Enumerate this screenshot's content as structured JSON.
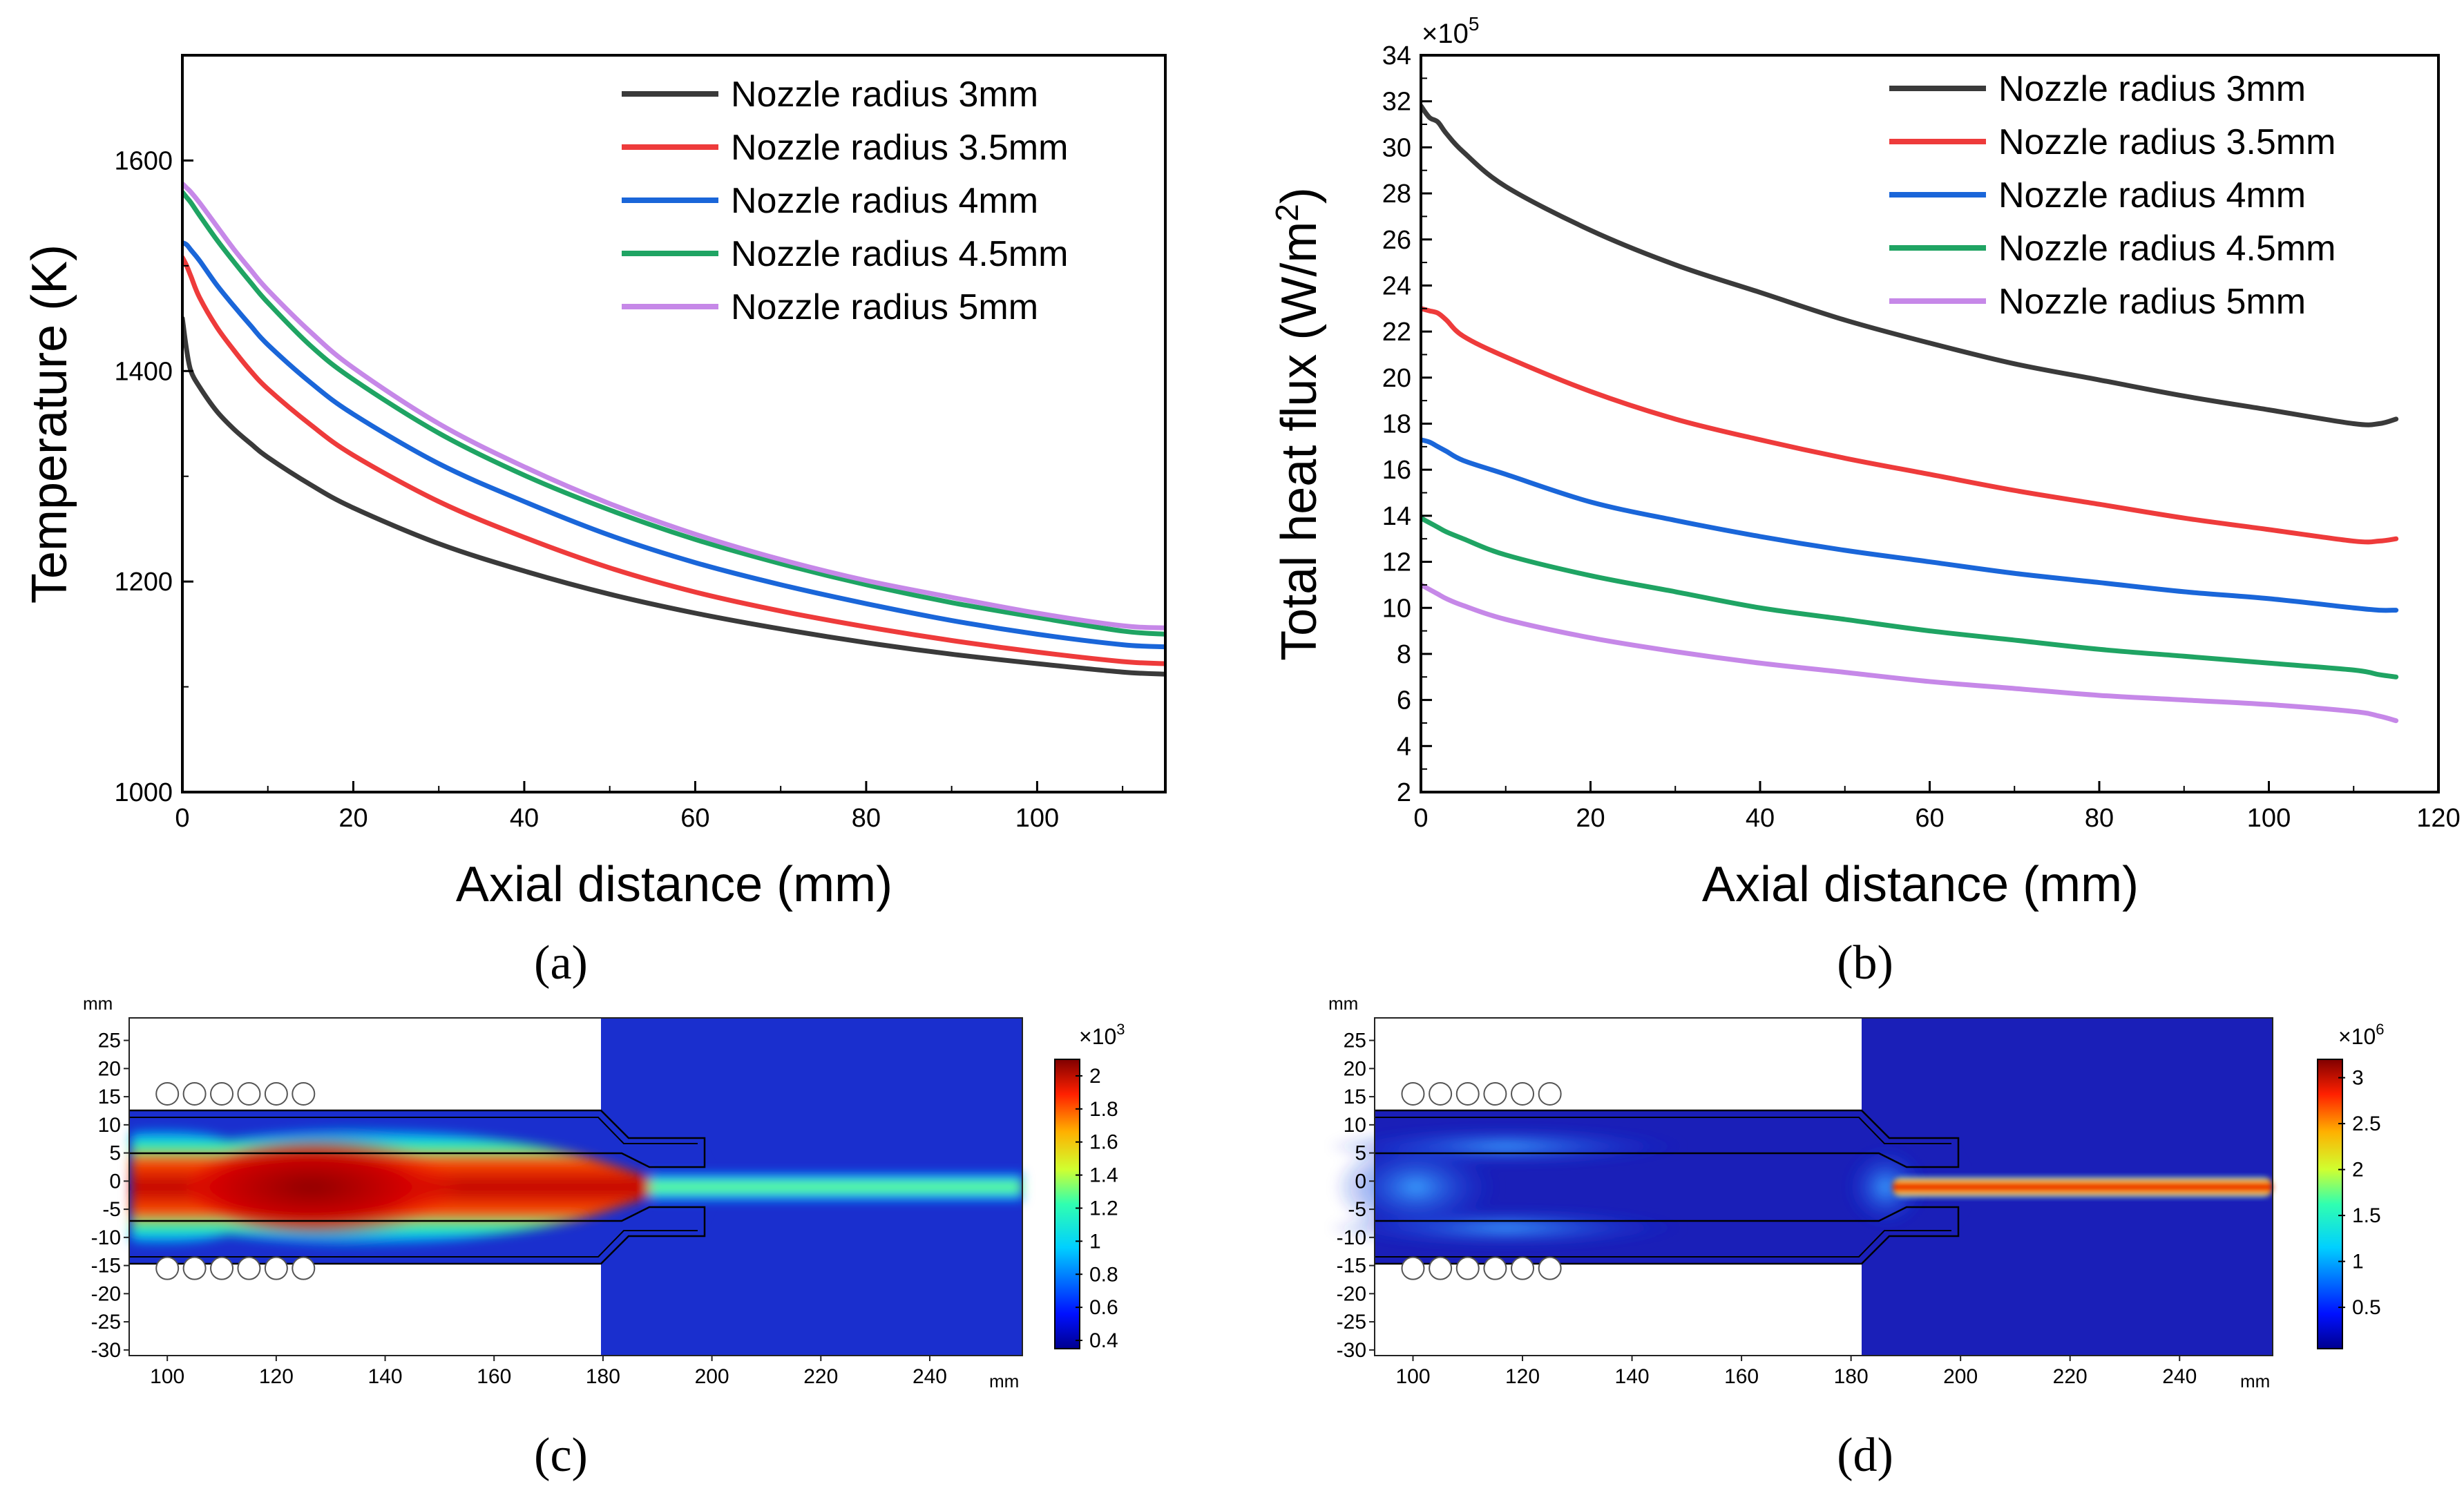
{
  "chart_data": [
    {
      "id": "a",
      "type": "line",
      "panel_label": "(a)",
      "xlabel": "Axial distance (mm)",
      "ylabel": "Temperature (K)",
      "xlim": [
        0,
        115
      ],
      "ylim": [
        1000,
        1700
      ],
      "xticks": [
        0,
        20,
        40,
        60,
        80,
        100
      ],
      "yticks": [
        1000,
        1200,
        1400,
        1600
      ],
      "legend_position": "top-right",
      "x": [
        0,
        0.5,
        1,
        2,
        4,
        6,
        8,
        10,
        15,
        20,
        30,
        40,
        50,
        60,
        70,
        80,
        90,
        100,
        110,
        115
      ],
      "series": [
        {
          "name": "Nozzle radius 3mm",
          "color": "#3a3a3a",
          "values": [
            1450,
            1420,
            1400,
            1385,
            1362,
            1345,
            1331,
            1318,
            1292,
            1270,
            1236,
            1210,
            1188,
            1170,
            1155,
            1142,
            1131,
            1122,
            1114,
            1112
          ]
        },
        {
          "name": "Nozzle radius 3.5mm",
          "color": "#ee3b3b",
          "values": [
            1508,
            1500,
            1490,
            1470,
            1442,
            1420,
            1400,
            1383,
            1349,
            1320,
            1276,
            1242,
            1213,
            1190,
            1172,
            1157,
            1144,
            1133,
            1124,
            1122
          ]
        },
        {
          "name": "Nozzle radius 4mm",
          "color": "#1a66d9",
          "values": [
            1522,
            1520,
            1515,
            1505,
            1482,
            1462,
            1443,
            1425,
            1389,
            1359,
            1312,
            1276,
            1244,
            1218,
            1197,
            1179,
            1163,
            1150,
            1140,
            1138
          ]
        },
        {
          "name": "Nozzle radius 4.5mm",
          "color": "#1fa463",
          "values": [
            1570,
            1565,
            1560,
            1548,
            1525,
            1504,
            1484,
            1465,
            1424,
            1392,
            1341,
            1301,
            1268,
            1240,
            1217,
            1197,
            1180,
            1166,
            1153,
            1150
          ]
        },
        {
          "name": "Nozzle radius 5mm",
          "color": "#c688e8",
          "values": [
            1578,
            1574,
            1570,
            1560,
            1538,
            1516,
            1496,
            1477,
            1437,
            1403,
            1350,
            1309,
            1274,
            1245,
            1221,
            1201,
            1185,
            1170,
            1158,
            1156
          ]
        }
      ]
    },
    {
      "id": "b",
      "type": "line",
      "panel_label": "(b)",
      "xlabel": "Axial distance (mm)",
      "ylabel_main": "Total heat flux (W/m",
      "ylabel_sup": "2",
      "ylabel_end": ")",
      "axis_multiplier_main": "×10",
      "axis_multiplier_exp": "5",
      "xlim": [
        0,
        120
      ],
      "ylim": [
        2,
        34
      ],
      "xticks": [
        0,
        20,
        40,
        60,
        80,
        100,
        120
      ],
      "yticks": [
        2,
        4,
        6,
        8,
        10,
        12,
        14,
        16,
        18,
        20,
        22,
        24,
        26,
        28,
        30,
        32,
        34
      ],
      "legend_position": "top-right",
      "x": [
        0,
        1,
        2,
        3,
        5,
        10,
        20,
        30,
        40,
        50,
        60,
        70,
        80,
        90,
        100,
        110,
        113,
        115
      ],
      "series": [
        {
          "name": "Nozzle radius 3mm",
          "color": "#3a3a3a",
          "values": [
            31.8,
            31.3,
            31.1,
            30.6,
            29.8,
            28.3,
            26.4,
            24.9,
            23.7,
            22.5,
            21.5,
            20.6,
            19.9,
            19.2,
            18.6,
            18.0,
            18.0,
            18.2
          ]
        },
        {
          "name": "Nozzle radius 3.5mm",
          "color": "#ee3b3b",
          "values": [
            23.0,
            22.9,
            22.8,
            22.5,
            21.8,
            20.9,
            19.4,
            18.2,
            17.3,
            16.5,
            15.8,
            15.1,
            14.5,
            13.9,
            13.4,
            12.9,
            12.9,
            13.0
          ]
        },
        {
          "name": "Nozzle radius 4mm",
          "color": "#1a66d9",
          "values": [
            17.3,
            17.2,
            17.0,
            16.8,
            16.4,
            15.8,
            14.6,
            13.8,
            13.1,
            12.5,
            12.0,
            11.5,
            11.1,
            10.7,
            10.4,
            10.0,
            9.9,
            9.9
          ]
        },
        {
          "name": "Nozzle radius 4.5mm",
          "color": "#1fa463",
          "values": [
            13.9,
            13.7,
            13.5,
            13.3,
            13.0,
            12.3,
            11.4,
            10.7,
            10.0,
            9.5,
            9.0,
            8.6,
            8.2,
            7.9,
            7.6,
            7.3,
            7.1,
            7.0
          ]
        },
        {
          "name": "Nozzle radius 5mm",
          "color": "#c688e8",
          "values": [
            11.0,
            10.8,
            10.6,
            10.4,
            10.1,
            9.5,
            8.7,
            8.1,
            7.6,
            7.2,
            6.8,
            6.5,
            6.2,
            6.0,
            5.8,
            5.5,
            5.3,
            5.1
          ]
        }
      ]
    },
    {
      "id": "c",
      "type": "heatmap",
      "panel_label": "(c)",
      "unit": "mm",
      "xlim": [
        93,
        257
      ],
      "ylim": [
        -31,
        29
      ],
      "xticks": [
        100,
        120,
        140,
        160,
        180,
        200,
        220,
        240
      ],
      "yticks": [
        25,
        20,
        15,
        10,
        5,
        0,
        -5,
        -10,
        -15,
        -20,
        -25,
        -30
      ],
      "colorbar_multiplier_main": "×10",
      "colorbar_multiplier_exp": "3",
      "colorbar_range": [
        0.35,
        2.1
      ],
      "colorbar_ticks": [
        "2",
        "1.8",
        "1.6",
        "1.4",
        "1.2",
        "1",
        "0.8",
        "0.6",
        "0.4"
      ],
      "colorbar_values": [
        2,
        1.8,
        1.6,
        1.4,
        1.2,
        1,
        0.8,
        0.6,
        0.4
      ]
    },
    {
      "id": "d",
      "type": "heatmap",
      "panel_label": "(d)",
      "unit": "mm",
      "xlim": [
        93,
        257
      ],
      "ylim": [
        -31,
        29
      ],
      "xticks": [
        100,
        120,
        140,
        160,
        180,
        200,
        220,
        240
      ],
      "yticks": [
        25,
        20,
        15,
        10,
        5,
        0,
        -5,
        -10,
        -15,
        -20,
        -25,
        -30
      ],
      "colorbar_multiplier_main": "×10",
      "colorbar_multiplier_exp": "6",
      "colorbar_range": [
        0.05,
        3.2
      ],
      "colorbar_ticks": [
        "3",
        "2.5",
        "2",
        "1.5",
        "1",
        "0.5"
      ],
      "colorbar_values": [
        3,
        2.5,
        2,
        1.5,
        1,
        0.5
      ]
    }
  ]
}
